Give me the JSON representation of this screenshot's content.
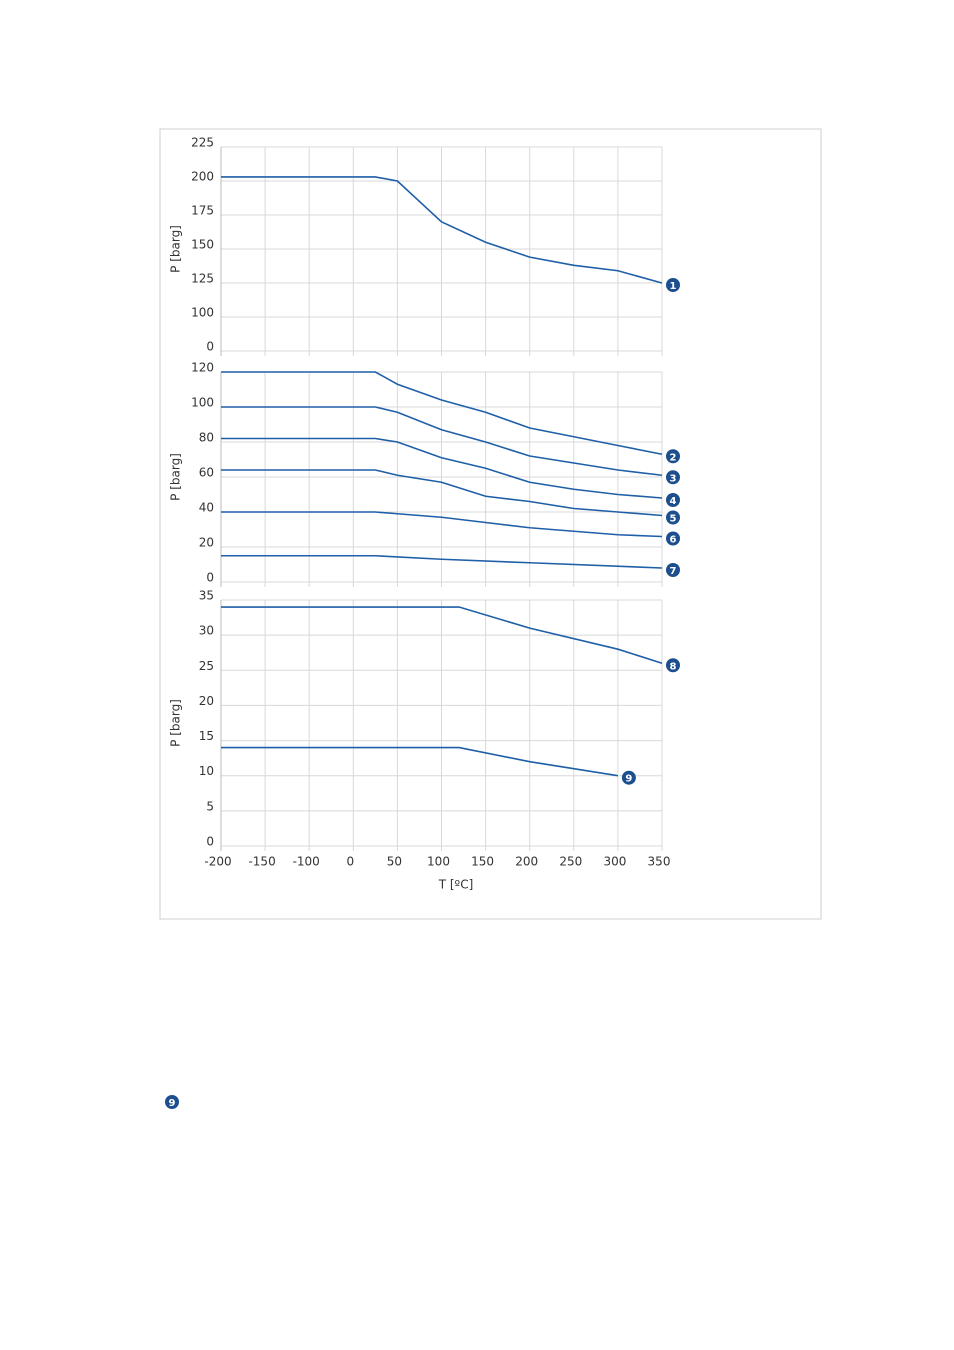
{
  "chart_data": [
    {
      "type": "line",
      "ylabel": "P [barg]",
      "xlim": [
        -200,
        350
      ],
      "xticks": [
        -200,
        -150,
        -100,
        0,
        50,
        100,
        150,
        200,
        250,
        300,
        350
      ],
      "ylim": [
        0,
        225
      ],
      "yticks": [
        0,
        100,
        125,
        150,
        175,
        200,
        225
      ],
      "grid": true,
      "series": [
        {
          "name": "1",
          "color": "#1f5fa8",
          "x": [
            -200,
            25,
            50,
            100,
            150,
            200,
            250,
            300,
            350
          ],
          "values": [
            203,
            203,
            200,
            170,
            155,
            144,
            138,
            134,
            125
          ]
        }
      ]
    },
    {
      "type": "line",
      "ylabel": "P [barg]",
      "xlim": [
        -200,
        350
      ],
      "xticks": [
        -200,
        -150,
        -100,
        0,
        50,
        100,
        150,
        200,
        250,
        300,
        350
      ],
      "ylim": [
        0,
        120
      ],
      "yticks": [
        0,
        20,
        40,
        60,
        80,
        100,
        120
      ],
      "grid": true,
      "series": [
        {
          "name": "2",
          "color": "#1f5fa8",
          "x": [
            -200,
            25,
            50,
            100,
            150,
            200,
            250,
            300,
            350
          ],
          "values": [
            120,
            120,
            113,
            104,
            97,
            88,
            83,
            78,
            73
          ]
        },
        {
          "name": "3",
          "color": "#1f5fa8",
          "x": [
            -200,
            25,
            50,
            100,
            150,
            200,
            250,
            300,
            350
          ],
          "values": [
            100,
            100,
            97,
            87,
            80,
            72,
            68,
            64,
            61
          ]
        },
        {
          "name": "4",
          "color": "#1f5fa8",
          "x": [
            -200,
            25,
            50,
            100,
            150,
            200,
            250,
            300,
            350
          ],
          "values": [
            82,
            82,
            80,
            71,
            65,
            57,
            53,
            50,
            48
          ]
        },
        {
          "name": "5",
          "color": "#1f5fa8",
          "x": [
            -200,
            25,
            50,
            100,
            150,
            200,
            250,
            300,
            350
          ],
          "values": [
            64,
            64,
            61,
            57,
            49,
            46,
            42,
            40,
            38
          ]
        },
        {
          "name": "6",
          "color": "#1f5fa8",
          "x": [
            -200,
            25,
            50,
            100,
            150,
            200,
            250,
            300,
            350
          ],
          "values": [
            40,
            40,
            39,
            37,
            34,
            31,
            29,
            27,
            26
          ]
        },
        {
          "name": "7",
          "color": "#1f5fa8",
          "x": [
            -200,
            25,
            100,
            200,
            350
          ],
          "values": [
            15,
            15,
            13,
            11,
            8
          ]
        }
      ]
    },
    {
      "type": "line",
      "ylabel": "P [barg]",
      "xlabel": "T [ºC]",
      "xlim": [
        -200,
        350
      ],
      "xticks": [
        -200,
        -150,
        -100,
        0,
        50,
        100,
        150,
        200,
        250,
        300,
        350
      ],
      "ylim": [
        0,
        35
      ],
      "yticks": [
        0,
        5,
        10,
        15,
        20,
        25,
        30,
        35
      ],
      "grid": true,
      "series": [
        {
          "name": "8",
          "color": "#1f5fa8",
          "x": [
            -200,
            120,
            200,
            300,
            350
          ],
          "values": [
            34,
            34,
            31,
            28,
            26
          ]
        },
        {
          "name": "9",
          "color": "#1f5fa8",
          "x": [
            -200,
            120,
            200,
            300
          ],
          "values": [
            14,
            14,
            12,
            10
          ]
        }
      ]
    }
  ],
  "note_marker": "9"
}
